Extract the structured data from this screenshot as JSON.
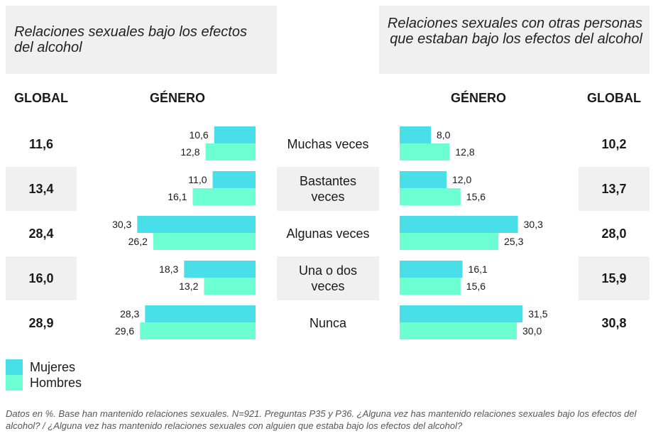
{
  "titles": {
    "left": "Relaciones sexuales bajo los efectos del alcohol",
    "right": "Relaciones sexuales con otras personas que estaban bajo los efectos del alcohol"
  },
  "headers": {
    "global_left": "GLOBAL",
    "genero_left": "GÉNERO",
    "genero_right": "GÉNERO",
    "global_right": "GLOBAL"
  },
  "legend": {
    "mujeres": "Mujeres",
    "hombres": "Hombres"
  },
  "colors": {
    "mujeres": "#48dfe9",
    "hombres": "#6cffd1",
    "band": "#f0f0f0"
  },
  "footnote": "Datos en %. Base han mantenido relaciones sexuales. N=921. Preguntas P35 y P36. ¿Alguna vez has mantenido relaciones sexuales bajo los efectos del alcohol? / ¿Alguna vez has mantenido relaciones sexuales con alguien que estaba bajo los efectos del alcohol?",
  "chart_data": {
    "type": "bar",
    "categories": [
      "Muchas veces",
      "Bastantes veces",
      "Algunas veces",
      "Una o dos veces",
      "Nunca"
    ],
    "charts": [
      {
        "title": "Relaciones sexuales bajo los efectos del alcohol",
        "orientation": "horizontal-left",
        "series": [
          {
            "name": "Mujeres",
            "values": [
              10.6,
              11.0,
              30.3,
              18.3,
              28.3
            ],
            "labels": [
              "10,6",
              "11,0",
              "30,3",
              "18,3",
              "28,3"
            ]
          },
          {
            "name": "Hombres",
            "values": [
              12.8,
              16.1,
              26.2,
              13.2,
              29.6
            ],
            "labels": [
              "12,8",
              "16,1",
              "26,2",
              "13,2",
              "29,6"
            ]
          }
        ],
        "global": [
          "11,6",
          "13,4",
          "28,4",
          "16,0",
          "28,9"
        ]
      },
      {
        "title": "Relaciones sexuales con otras personas que estaban bajo los efectos del alcohol",
        "orientation": "horizontal-right",
        "series": [
          {
            "name": "Mujeres",
            "values": [
              8.0,
              12.0,
              30.3,
              16.1,
              31.5
            ],
            "labels": [
              "8,0",
              "12,0",
              "30,3",
              "16,1",
              "31,5"
            ]
          },
          {
            "name": "Hombres",
            "values": [
              12.8,
              15.6,
              25.3,
              15.6,
              30.0
            ],
            "labels": [
              "12,8",
              "15,6",
              "25,3",
              "15,6",
              "30,0"
            ]
          }
        ],
        "global": [
          "10,2",
          "13,7",
          "28,0",
          "15,9",
          "30,8"
        ]
      }
    ]
  }
}
